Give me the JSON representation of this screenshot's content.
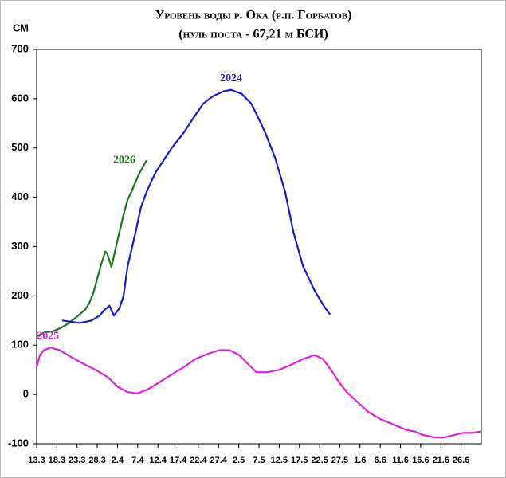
{
  "chart_data": {
    "type": "line",
    "title": "Уровень воды р. Ока (р.п. Горбатов)",
    "subtitle": "(нуль поста - 67,21 м БСИ)",
    "y_label": "СМ",
    "xlim": [
      0,
      110
    ],
    "xticks": [
      {
        "value": 0,
        "label": "13.3"
      },
      {
        "value": 5,
        "label": "18.3"
      },
      {
        "value": 10,
        "label": "23.3"
      },
      {
        "value": 15,
        "label": "28.3"
      },
      {
        "value": 20,
        "label": "2.4"
      },
      {
        "value": 25,
        "label": "7.4"
      },
      {
        "value": 30,
        "label": "12.4"
      },
      {
        "value": 35,
        "label": "17.4"
      },
      {
        "value": 40,
        "label": "22.4"
      },
      {
        "value": 45,
        "label": "27.4"
      },
      {
        "value": 50,
        "label": "2.5"
      },
      {
        "value": 55,
        "label": "7.5"
      },
      {
        "value": 60,
        "label": "12.5"
      },
      {
        "value": 65,
        "label": "17.5"
      },
      {
        "value": 70,
        "label": "22.5"
      },
      {
        "value": 75,
        "label": "27.5"
      },
      {
        "value": 80,
        "label": "1.6"
      },
      {
        "value": 85,
        "label": "6.6"
      },
      {
        "value": 90,
        "label": "11.6"
      },
      {
        "value": 95,
        "label": "16.6"
      },
      {
        "value": 100,
        "label": "21.6"
      },
      {
        "value": 105,
        "label": "26.6"
      }
    ],
    "ylim": [
      -100,
      700
    ],
    "yticks": [
      -100,
      0,
      100,
      200,
      300,
      400,
      500,
      600,
      700
    ],
    "grid": false,
    "series": [
      {
        "name": "2026",
        "color": "#1a7a1a",
        "x": [
          0,
          2,
          4,
          6,
          8,
          10,
          12,
          13,
          14,
          15,
          16,
          17,
          17.5,
          18.5,
          19.5,
          20.5,
          21.5,
          22.5,
          23.5,
          24.5,
          25.5,
          26.5,
          27.2
        ],
        "values": [
          118,
          126,
          128,
          135,
          145,
          158,
          172,
          185,
          205,
          235,
          265,
          290,
          285,
          258,
          295,
          330,
          365,
          395,
          412,
          432,
          450,
          465,
          475
        ]
      },
      {
        "name": "2024",
        "color": "#1a1acc",
        "x": [
          6.3,
          10.6,
          13.6,
          15.6,
          16.6,
          18,
          19.1,
          20.5,
          21.5,
          22.5,
          24.5,
          25.8,
          27.4,
          29.4,
          31.8,
          33.4,
          36.3,
          38.7,
          41.2,
          43.6,
          46.2,
          48.1,
          50.7,
          53.1,
          54.6,
          56.6,
          59,
          61.5,
          63.5,
          65.9,
          68.8,
          71.4,
          72.6
        ],
        "values": [
          150,
          145,
          150,
          160,
          170,
          180,
          160,
          175,
          200,
          260,
          330,
          380,
          415,
          450,
          480,
          500,
          530,
          560,
          590,
          605,
          615,
          618,
          610,
          590,
          565,
          530,
          480,
          410,
          330,
          260,
          210,
          175,
          162
        ]
      },
      {
        "name": "2025",
        "color": "#e020e0",
        "x": [
          0,
          0.8,
          1.8,
          3.4,
          5.7,
          8.7,
          11.6,
          14.6,
          17.6,
          20.1,
          22.5,
          24.9,
          27.4,
          30.4,
          33.3,
          36.3,
          39.3,
          42.2,
          45.2,
          47.7,
          50.1,
          52.5,
          54.4,
          57,
          60,
          62.9,
          65.9,
          68.8,
          70.8,
          72.8,
          74.8,
          76.7,
          79.3,
          82,
          85,
          88,
          91.5,
          93.5,
          95.5,
          98.4,
          100.4,
          103,
          105.3,
          107.7,
          110
        ],
        "values": [
          55,
          80,
          90,
          95,
          90,
          75,
          62,
          50,
          35,
          15,
          5,
          2,
          10,
          25,
          40,
          55,
          72,
          82,
          90,
          90,
          80,
          60,
          45,
          45,
          50,
          60,
          72,
          80,
          72,
          50,
          25,
          5,
          -15,
          -35,
          -50,
          -60,
          -72,
          -75,
          -82,
          -87,
          -88,
          -83,
          -78,
          -78,
          -75
        ]
      }
    ]
  }
}
